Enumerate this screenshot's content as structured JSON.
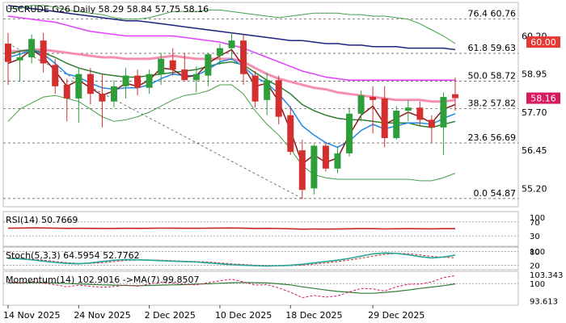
{
  "chart_data": {
    "type": "candlestick",
    "symbol": "USCRUDE G26",
    "timeframe": "Daily",
    "header_text": "USCRUDE G26 Daily  58.29 58.84 57.75 58.16",
    "ohlc_readout": {
      "open": 58.29,
      "high": 58.84,
      "low": 57.75,
      "close": 58.16
    },
    "last_price": {
      "label": "58.16",
      "value": 58.16,
      "color": "#d81b60"
    },
    "alert_level": {
      "label": "60.00",
      "value": 60.0,
      "color": "#e53935"
    },
    "ylim": [
      54.6,
      61.3
    ],
    "y_ticks": [
      {
        "label": "60.20",
        "value": 60.2
      },
      {
        "label": "58.95",
        "value": 58.95
      },
      {
        "label": "57.70",
        "value": 57.7
      },
      {
        "label": "56.45",
        "value": 56.45
      },
      {
        "label": "55.20",
        "value": 55.2
      }
    ],
    "x_ticks": [
      {
        "label": "14 Nov 2025",
        "index": 0
      },
      {
        "label": "24 Nov 2025",
        "index": 6
      },
      {
        "label": "2 Dec 2025",
        "index": 12
      },
      {
        "label": "10 Dec 2025",
        "index": 18
      },
      {
        "label": "18 Dec 2025",
        "index": 24
      },
      {
        "label": "29 Dec 2025",
        "index": 31
      }
    ],
    "fib_levels": [
      {
        "label": "76.4 60.76",
        "value": 60.76
      },
      {
        "label": "61.8 59.63",
        "value": 59.63
      },
      {
        "label": "50.0 58.72",
        "value": 58.72
      },
      {
        "label": "38.2 57.82",
        "value": 57.82
      },
      {
        "label": "23.6 56.69",
        "value": 56.69
      },
      {
        "label": "0.0 54.87",
        "value": 54.87
      }
    ],
    "candles": [
      {
        "o": 59.95,
        "h": 60.3,
        "l": 58.6,
        "c": 59.35
      },
      {
        "o": 59.4,
        "h": 59.75,
        "l": 58.7,
        "c": 59.5
      },
      {
        "o": 59.5,
        "h": 60.25,
        "l": 59.3,
        "c": 60.1
      },
      {
        "o": 60.05,
        "h": 60.3,
        "l": 59.0,
        "c": 59.3
      },
      {
        "o": 59.25,
        "h": 59.45,
        "l": 58.3,
        "c": 58.55
      },
      {
        "o": 58.6,
        "h": 58.8,
        "l": 57.4,
        "c": 58.15
      },
      {
        "o": 58.15,
        "h": 59.15,
        "l": 57.35,
        "c": 58.95
      },
      {
        "o": 58.95,
        "h": 59.15,
        "l": 57.95,
        "c": 58.3
      },
      {
        "o": 58.3,
        "h": 58.95,
        "l": 57.2,
        "c": 58.05
      },
      {
        "o": 58.05,
        "h": 58.75,
        "l": 57.85,
        "c": 58.55
      },
      {
        "o": 58.55,
        "h": 59.15,
        "l": 58.15,
        "c": 58.9
      },
      {
        "o": 58.9,
        "h": 59.1,
        "l": 58.25,
        "c": 58.5
      },
      {
        "o": 58.5,
        "h": 59.1,
        "l": 58.3,
        "c": 58.95
      },
      {
        "o": 58.95,
        "h": 59.65,
        "l": 58.6,
        "c": 59.45
      },
      {
        "o": 59.4,
        "h": 59.8,
        "l": 58.9,
        "c": 59.1
      },
      {
        "o": 59.1,
        "h": 59.65,
        "l": 58.8,
        "c": 58.75
      },
      {
        "o": 58.75,
        "h": 59.2,
        "l": 58.35,
        "c": 58.95
      },
      {
        "o": 58.9,
        "h": 59.65,
        "l": 58.55,
        "c": 59.6
      },
      {
        "o": 59.55,
        "h": 59.95,
        "l": 59.25,
        "c": 59.8
      },
      {
        "o": 59.8,
        "h": 60.3,
        "l": 59.4,
        "c": 60.05
      },
      {
        "o": 60.05,
        "h": 60.25,
        "l": 58.6,
        "c": 58.95
      },
      {
        "o": 58.9,
        "h": 59.05,
        "l": 57.85,
        "c": 58.05
      },
      {
        "o": 58.1,
        "h": 59.0,
        "l": 57.6,
        "c": 58.75
      },
      {
        "o": 58.75,
        "h": 58.9,
        "l": 57.3,
        "c": 57.55
      },
      {
        "o": 57.6,
        "h": 57.9,
        "l": 56.3,
        "c": 56.4
      },
      {
        "o": 56.45,
        "h": 56.8,
        "l": 54.85,
        "c": 55.15
      },
      {
        "o": 55.2,
        "h": 56.65,
        "l": 55.0,
        "c": 56.6
      },
      {
        "o": 56.6,
        "h": 56.7,
        "l": 55.75,
        "c": 55.85
      },
      {
        "o": 55.85,
        "h": 56.55,
        "l": 55.7,
        "c": 56.35
      },
      {
        "o": 56.35,
        "h": 57.85,
        "l": 56.25,
        "c": 57.65
      },
      {
        "o": 57.65,
        "h": 58.4,
        "l": 57.4,
        "c": 58.25
      },
      {
        "o": 58.2,
        "h": 58.55,
        "l": 57.0,
        "c": 58.1
      },
      {
        "o": 58.15,
        "h": 58.55,
        "l": 56.55,
        "c": 56.85
      },
      {
        "o": 56.85,
        "h": 57.9,
        "l": 56.8,
        "c": 57.75
      },
      {
        "o": 57.75,
        "h": 58.1,
        "l": 57.4,
        "c": 57.85
      },
      {
        "o": 57.85,
        "h": 58.05,
        "l": 57.25,
        "c": 57.45
      },
      {
        "o": 57.45,
        "h": 57.6,
        "l": 56.7,
        "c": 57.2
      },
      {
        "o": 57.2,
        "h": 58.35,
        "l": 56.3,
        "c": 58.2
      },
      {
        "o": 58.29,
        "h": 58.84,
        "l": 57.75,
        "c": 58.16
      }
    ],
    "overlays": [
      {
        "color": "#1a237e",
        "values": [
          61.2,
          61.15,
          61.1,
          61.05,
          61.0,
          60.95,
          60.9,
          60.85,
          60.8,
          60.75,
          60.7,
          60.7,
          60.65,
          60.6,
          60.55,
          60.5,
          60.45,
          60.4,
          60.35,
          60.3,
          60.25,
          60.2,
          60.15,
          60.1,
          60.05,
          60.05,
          60.0,
          59.95,
          59.95,
          59.9,
          59.9,
          59.85,
          59.85,
          59.85,
          59.8,
          59.8,
          59.8,
          59.8,
          59.75
        ]
      },
      {
        "color": "#e040fb",
        "values": [
          60.85,
          60.8,
          60.75,
          60.7,
          60.65,
          60.55,
          60.45,
          60.35,
          60.3,
          60.25,
          60.2,
          60.2,
          60.2,
          60.2,
          60.2,
          60.15,
          60.1,
          60.05,
          60.0,
          59.9,
          59.8,
          59.65,
          59.5,
          59.35,
          59.2,
          59.05,
          58.95,
          58.85,
          58.8,
          58.75,
          58.75,
          58.75,
          58.75,
          58.75,
          58.75,
          58.75,
          58.75,
          58.75,
          58.75
        ]
      },
      {
        "color": "#f48fb1",
        "values": [
          59.7,
          59.7,
          59.75,
          59.75,
          59.7,
          59.65,
          59.6,
          59.55,
          59.5,
          59.5,
          59.45,
          59.45,
          59.45,
          59.5,
          59.55,
          59.5,
          59.45,
          59.45,
          59.45,
          59.45,
          59.35,
          59.15,
          58.95,
          58.8,
          58.7,
          58.6,
          58.5,
          58.45,
          58.35,
          58.3,
          58.25,
          58.2,
          58.15,
          58.1,
          58.1,
          58.1,
          58.05,
          58.05,
          58.1
        ]
      },
      {
        "color": "#2e7d32",
        "values": [
          59.6,
          59.7,
          59.75,
          59.65,
          59.5,
          59.3,
          59.15,
          59.05,
          58.95,
          58.9,
          58.85,
          58.85,
          58.9,
          58.95,
          59.0,
          59.05,
          59.1,
          59.2,
          59.3,
          59.35,
          59.25,
          59.0,
          58.75,
          58.55,
          58.3,
          57.95,
          57.75,
          57.6,
          57.5,
          57.45,
          57.45,
          57.4,
          57.35,
          57.35,
          57.35,
          57.25,
          57.2,
          57.3,
          57.4
        ]
      },
      {
        "color": "#1e88e5",
        "values": [
          59.5,
          59.6,
          59.75,
          59.6,
          59.3,
          58.95,
          58.85,
          58.65,
          58.5,
          58.45,
          58.5,
          58.5,
          58.6,
          58.8,
          58.95,
          58.9,
          58.9,
          59.1,
          59.35,
          59.45,
          59.2,
          58.85,
          58.65,
          58.3,
          57.85,
          57.25,
          56.95,
          56.7,
          56.55,
          56.75,
          57.1,
          57.3,
          57.15,
          57.25,
          57.35,
          57.35,
          57.3,
          57.5,
          57.65
        ]
      },
      {
        "color": "#8b1a1a",
        "values": [
          59.3,
          59.45,
          59.75,
          59.5,
          59.05,
          58.55,
          58.75,
          58.5,
          58.25,
          58.4,
          58.65,
          58.55,
          58.75,
          59.15,
          59.1,
          58.85,
          58.9,
          59.3,
          59.55,
          59.75,
          59.2,
          58.55,
          58.65,
          58.05,
          57.1,
          56.0,
          56.3,
          56.05,
          56.2,
          56.95,
          57.6,
          57.9,
          57.3,
          57.5,
          57.7,
          57.55,
          57.35,
          57.8,
          57.95
        ]
      },
      {
        "color": "#43a047",
        "values": [
          57.4,
          57.8,
          58.0,
          58.2,
          58.25,
          58.15,
          58.05,
          57.8,
          57.55,
          57.4,
          57.45,
          57.55,
          57.7,
          57.9,
          58.1,
          58.25,
          58.3,
          58.4,
          58.6,
          58.6,
          58.3,
          57.75,
          57.3,
          56.95,
          56.5,
          55.95,
          55.65,
          55.55,
          55.5,
          55.5,
          55.5,
          55.5,
          55.5,
          55.5,
          55.5,
          55.45,
          55.45,
          55.55,
          55.7
        ]
      },
      {
        "color": "#43a047",
        "values": [
          61.1,
          61.1,
          61.2,
          61.2,
          61.15,
          61.05,
          61.0,
          60.95,
          60.9,
          60.8,
          60.75,
          60.75,
          60.8,
          60.9,
          61.0,
          61.0,
          61.0,
          61.05,
          61.05,
          61.0,
          60.95,
          60.9,
          60.85,
          60.8,
          60.85,
          60.9,
          60.95,
          60.95,
          60.95,
          60.9,
          60.9,
          60.85,
          60.85,
          60.8,
          60.75,
          60.6,
          60.4,
          60.2,
          59.95
        ]
      }
    ],
    "trendline": {
      "from": {
        "index": 0,
        "value": 59.95
      },
      "to": {
        "index": 25,
        "value": 54.87
      }
    },
    "rsi": {
      "label": "RSI(14) 50.7669",
      "levels": [
        {
          "label": "70",
          "value": 70
        },
        {
          "label": "30",
          "value": 30
        }
      ],
      "scale_label": "100",
      "values": [
        52.0,
        52.5,
        53.0,
        52.8,
        52.2,
        51.6,
        51.8,
        51.6,
        51.3,
        51.5,
        51.8,
        51.6,
        51.9,
        52.3,
        52.1,
        51.8,
        51.9,
        52.2,
        52.5,
        52.7,
        52.1,
        51.5,
        51.7,
        51.2,
        50.4,
        49.4,
        49.8,
        49.5,
        49.7,
        50.4,
        50.9,
        50.8,
        50.1,
        50.4,
        50.6,
        50.4,
        50.2,
        50.7,
        50.8
      ]
    },
    "stoch": {
      "label": "Stoch(5,3,3) 64.5954 52.7762",
      "levels": [
        {
          "label": "80",
          "value": 80
        },
        {
          "label": "20",
          "value": 20
        }
      ],
      "scale_label": "100",
      "k": [
        50,
        48,
        44,
        38,
        32,
        28,
        26,
        30,
        36,
        42,
        45,
        44,
        42,
        40,
        38,
        36,
        34,
        30,
        26,
        22,
        20,
        18,
        16,
        18,
        20,
        24,
        30,
        36,
        42,
        50,
        60,
        70,
        74,
        72,
        66,
        58,
        52,
        56,
        64.6
      ],
      "d": [
        52,
        50,
        47,
        42,
        36,
        31,
        28,
        28,
        31,
        36,
        41,
        43,
        43,
        42,
        40,
        38,
        36,
        34,
        30,
        26,
        23,
        20,
        18,
        17,
        18,
        20,
        25,
        30,
        36,
        43,
        51,
        60,
        68,
        72,
        71,
        65,
        59,
        55,
        52.8
      ]
    },
    "momentum": {
      "label": "Momentum(14) 102.9016  ->MA(7) 99.8507",
      "tick_labels": [
        {
          "label": "103.343",
          "value": 103.343
        },
        {
          "label": "100",
          "value": 100
        },
        {
          "label": "93.613",
          "value": 93.613
        }
      ],
      "momentum_values": [
        100.6,
        100.2,
        100.8,
        100.1,
        99.6,
        98.8,
        99.4,
        99.0,
        98.6,
        98.9,
        99.4,
        99.0,
        99.8,
        100.5,
        100.2,
        99.7,
        99.5,
        100.3,
        101.0,
        101.6,
        100.6,
        99.4,
        99.6,
        98.4,
        96.8,
        94.8,
        95.6,
        95.0,
        95.4,
        96.9,
        98.2,
        98.0,
        97.2,
        98.8,
        99.7,
        99.8,
        100.6,
        102.2,
        102.9
      ],
      "ma_values": [
        100.2,
        100.2,
        100.3,
        100.3,
        100.2,
        100.0,
        99.9,
        99.7,
        99.5,
        99.4,
        99.3,
        99.2,
        99.3,
        99.4,
        99.5,
        99.6,
        99.8,
        99.9,
        100.1,
        100.3,
        100.4,
        100.3,
        100.2,
        99.9,
        99.5,
        98.8,
        98.2,
        97.6,
        97.1,
        96.8,
        96.4,
        96.4,
        96.7,
        97.1,
        97.6,
        98.2,
        98.7,
        99.2,
        99.85
      ]
    }
  }
}
